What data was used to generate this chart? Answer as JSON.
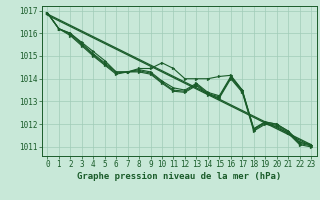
{
  "background_color": "#c8e8d8",
  "grid_color": "#a0ccb8",
  "line_color": "#1a5c2a",
  "xlim": [
    -0.5,
    23.5
  ],
  "ylim": [
    1010.6,
    1017.2
  ],
  "yticks": [
    1011,
    1012,
    1013,
    1014,
    1015,
    1016,
    1017
  ],
  "xticks": [
    0,
    1,
    2,
    3,
    4,
    5,
    6,
    7,
    8,
    9,
    10,
    11,
    12,
    13,
    14,
    15,
    16,
    17,
    18,
    19,
    20,
    21,
    22,
    23
  ],
  "xlabel": "Graphe pression niveau de la mer (hPa)",
  "tick_fontsize": 5.5,
  "label_fontsize": 6.5,
  "series_data": [
    [
      1016.9,
      1016.2,
      1016.0,
      1015.6,
      1015.2,
      1014.8,
      1014.3,
      1014.3,
      1014.45,
      1014.45,
      1014.7,
      1014.45,
      1014.0,
      1014.0,
      1014.0,
      1014.1,
      1014.15,
      1013.5,
      1011.8,
      1012.1,
      1012.0,
      1011.7,
      1011.2,
      1011.1
    ],
    [
      1016.9,
      1016.2,
      1016.0,
      1015.55,
      1015.1,
      1014.7,
      1014.3,
      1014.3,
      1014.4,
      1014.3,
      1013.9,
      1013.6,
      1013.5,
      1013.8,
      1013.4,
      1013.25,
      1014.1,
      1013.5,
      1011.8,
      1012.1,
      1012.0,
      1011.7,
      1011.2,
      1011.1
    ],
    [
      1016.9,
      1016.2,
      1015.95,
      1015.5,
      1015.05,
      1014.65,
      1014.25,
      1014.3,
      1014.35,
      1014.25,
      1013.85,
      1013.5,
      1013.45,
      1013.75,
      1013.35,
      1013.2,
      1014.05,
      1013.45,
      1011.75,
      1012.05,
      1011.95,
      1011.65,
      1011.15,
      1011.05
    ],
    [
      1016.9,
      1016.2,
      1015.9,
      1015.45,
      1015.0,
      1014.6,
      1014.2,
      1014.3,
      1014.3,
      1014.2,
      1013.8,
      1013.45,
      1013.4,
      1013.7,
      1013.3,
      1013.15,
      1014.0,
      1013.4,
      1011.7,
      1012.0,
      1011.9,
      1011.6,
      1011.1,
      1011.0
    ]
  ],
  "trend_lines": [
    [
      [
        0,
        23
      ],
      [
        1016.85,
        1011.1
      ]
    ],
    [
      [
        0,
        23
      ],
      [
        1016.8,
        1011.05
      ]
    ]
  ],
  "figsize": [
    3.2,
    2.0
  ],
  "dpi": 100
}
